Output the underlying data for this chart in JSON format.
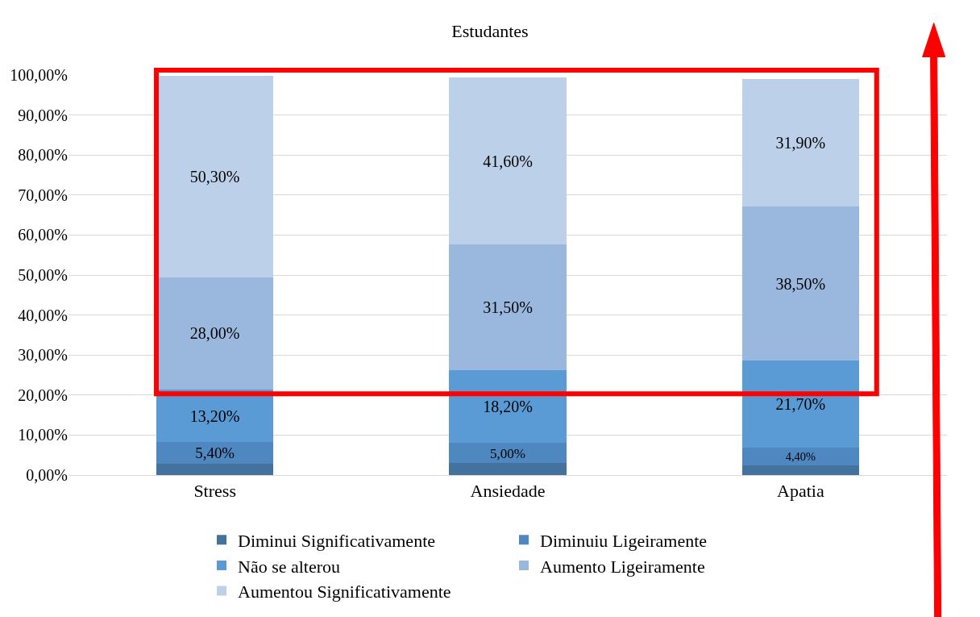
{
  "chart_data": {
    "type": "bar",
    "title": "Estudantes",
    "stacked": true,
    "categories": [
      "Stress",
      "Ansiedade",
      "Apatia"
    ],
    "series": [
      {
        "name": "Diminui Significativamente",
        "color": "#44729f",
        "values": [
          2.8,
          3.0,
          2.5
        ],
        "value_labels": [
          null,
          null,
          null
        ]
      },
      {
        "name": "Diminuiu Ligeiramente",
        "color": "#4f87c0",
        "values": [
          5.4,
          5.0,
          4.4
        ],
        "value_labels": [
          "5,40%",
          "5,00%",
          "4,40%"
        ]
      },
      {
        "name": "Não se alterou",
        "color": "#5b9bd5",
        "values": [
          13.2,
          18.2,
          21.7
        ],
        "value_labels": [
          "13,20%",
          "18,20%",
          "21,70%"
        ]
      },
      {
        "name": "Aumento Ligeiramente",
        "color": "#9ab8de",
        "values": [
          28.0,
          31.5,
          38.5
        ],
        "value_labels": [
          "28,00%",
          "31,50%",
          "38,50%"
        ]
      },
      {
        "name": "Aumentou Significativamente",
        "color": "#bdd0ea",
        "values": [
          50.3,
          41.6,
          31.9
        ],
        "value_labels": [
          "50,30%",
          "41,60%",
          "31,90%"
        ]
      }
    ],
    "ylim": [
      0,
      100
    ],
    "yticks": [
      {
        "value": 0,
        "label": "0,00%"
      },
      {
        "value": 10,
        "label": "10,00%"
      },
      {
        "value": 20,
        "label": "20,00%"
      },
      {
        "value": 30,
        "label": "30,00%"
      },
      {
        "value": 40,
        "label": "40,00%"
      },
      {
        "value": 50,
        "label": "50,00%"
      },
      {
        "value": 60,
        "label": "60,00%"
      },
      {
        "value": 70,
        "label": "70,00%"
      },
      {
        "value": 80,
        "label": "80,00%"
      },
      {
        "value": 90,
        "label": "90,00%"
      },
      {
        "value": 100,
        "label": "100,00%"
      }
    ],
    "grid": "y",
    "legend": "bottom"
  }
}
